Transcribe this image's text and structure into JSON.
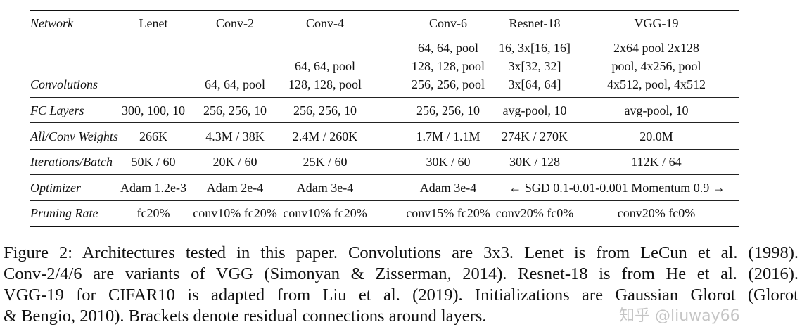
{
  "table": {
    "header": [
      "Network",
      "Lenet",
      "Conv-2",
      "Conv-4",
      "Conv-6",
      "Resnet-18",
      "VGG-19"
    ],
    "rows": [
      {
        "label": "Convolutions",
        "cells": [
          [],
          [
            "64, 64, pool"
          ],
          [
            "64, 64, pool",
            "128, 128, pool"
          ],
          [
            "64, 64, pool",
            "128, 128, pool",
            "256, 256, pool"
          ],
          [
            "16, 3x[16, 16]",
            "3x[32, 32]",
            "3x[64, 64]"
          ],
          [
            "2x64 pool 2x128",
            "pool, 4x256, pool",
            "4x512, pool, 4x512"
          ]
        ]
      },
      {
        "label": "FC Layers",
        "cells": [
          "300, 100, 10",
          "256, 256, 10",
          "256, 256, 10",
          "256, 256, 10",
          "avg-pool, 10",
          "avg-pool, 10"
        ]
      },
      {
        "label": "All/Conv Weights",
        "cells": [
          "266K",
          "4.3M / 38K",
          "2.4M / 260K",
          "1.7M / 1.1M",
          "274K / 270K",
          "20.0M"
        ]
      },
      {
        "label": "Iterations/Batch",
        "cells": [
          "50K / 60",
          "20K / 60",
          "25K / 60",
          "30K / 60",
          "30K / 128",
          "112K / 64"
        ]
      },
      {
        "label": "Optimizer",
        "cells": [
          "Adam 1.2e-3",
          "Adam 2e-4",
          "Adam 3e-4",
          "Adam 3e-4"
        ],
        "spanning": "← SGD 0.1-0.01-0.001 Momentum 0.9 →"
      },
      {
        "label": "Pruning Rate",
        "cells": [
          "fc20%",
          "conv10% fc20%",
          "conv10% fc20%",
          "conv15% fc20%",
          "conv20% fc0%",
          "conv20% fc0%"
        ]
      }
    ]
  },
  "caption": {
    "lines": [
      "Figure 2: Architectures tested in this paper. Convolutions are 3x3. Lenet is from LeCun et al. (1998).",
      "Conv-2/4/6 are variants of VGG (Simonyan & Zisserman, 2014). Resnet-18 is from He et al. (2016).",
      "VGG-19 for CIFAR10 is adapted from Liu et al. (2019). Initializations are Gaussian Glorot (Glorot",
      "& Bengio, 2010). Brackets denote residual connections around layers."
    ]
  },
  "watermark": "知乎 @liuway66"
}
